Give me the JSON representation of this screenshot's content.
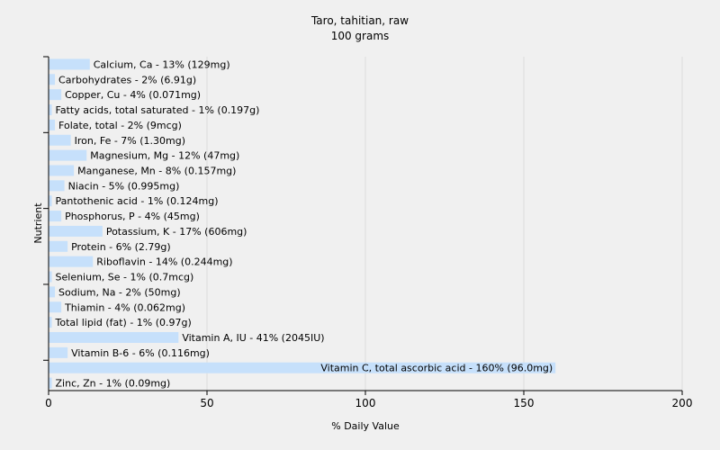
{
  "chart_data": {
    "type": "bar",
    "orientation": "horizontal",
    "title": "Taro, tahitian, raw",
    "subtitle": "100 grams",
    "xlabel": "% Daily Value",
    "ylabel": "Nutrient",
    "xlim": [
      0,
      200
    ],
    "xticks": [
      0,
      50,
      100,
      150,
      200
    ],
    "grid": true,
    "bar_color": "#c6e0fb",
    "categories": [
      "Calcium, Ca",
      "Carbohydrates",
      "Copper, Cu",
      "Fatty acids, total saturated",
      "Folate, total",
      "Iron, Fe",
      "Magnesium, Mg",
      "Manganese, Mn",
      "Niacin",
      "Pantothenic acid",
      "Phosphorus, P",
      "Potassium, K",
      "Protein",
      "Riboflavin",
      "Selenium, Se",
      "Sodium, Na",
      "Thiamin",
      "Total lipid (fat)",
      "Vitamin A, IU",
      "Vitamin B-6",
      "Vitamin C, total ascorbic acid",
      "Zinc, Zn"
    ],
    "values": [
      13,
      2,
      4,
      1,
      2,
      7,
      12,
      8,
      5,
      1,
      4,
      17,
      6,
      14,
      1,
      2,
      4,
      1,
      41,
      6,
      160,
      1
    ],
    "labels": [
      "Calcium, Ca - 13% (129mg)",
      "Carbohydrates - 2% (6.91g)",
      "Copper, Cu - 4% (0.071mg)",
      "Fatty acids, total saturated - 1% (0.197g)",
      "Folate, total - 2% (9mcg)",
      "Iron, Fe - 7% (1.30mg)",
      "Magnesium, Mg - 12% (47mg)",
      "Manganese, Mn - 8% (0.157mg)",
      "Niacin - 5% (0.995mg)",
      "Pantothenic acid - 1% (0.124mg)",
      "Phosphorus, P - 4% (45mg)",
      "Potassium, K - 17% (606mg)",
      "Protein - 6% (2.79g)",
      "Riboflavin - 14% (0.244mg)",
      "Selenium, Se - 1% (0.7mcg)",
      "Sodium, Na - 2% (50mg)",
      "Thiamin - 4% (0.062mg)",
      "Total lipid (fat) - 1% (0.97g)",
      "Vitamin A, IU - 41% (2045IU)",
      "Vitamin B-6 - 6% (0.116mg)",
      "Vitamin C, total ascorbic acid - 160% (96.0mg)",
      "Zinc, Zn - 1% (0.09mg)"
    ]
  }
}
